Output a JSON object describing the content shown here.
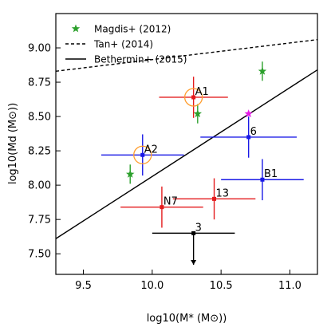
{
  "chart_data": {
    "type": "scatter",
    "xlabel": "log10(M* (M⊙))",
    "ylabel": "log10(Md (M⊙))",
    "xlim": [
      9.3,
      11.2
    ],
    "ylim": [
      7.35,
      9.25
    ],
    "xticks": [
      "9.5",
      "10.0",
      "10.5",
      "11.0"
    ],
    "yticks": [
      "7.50",
      "7.75",
      "8.00",
      "8.25",
      "8.50",
      "8.75",
      "9.00"
    ],
    "grid": false,
    "legend_position": "top-left",
    "legend": [
      {
        "label": "Magdis+ (2012)",
        "style": "star",
        "color": "#2ca02c"
      },
      {
        "label": "Tan+ (2014)",
        "style": "dashed-line",
        "color": "#000000"
      },
      {
        "label": "Bethermin+ (2015)",
        "style": "solid-line",
        "color": "#000000"
      }
    ],
    "lines": [
      {
        "name": "Tan+ (2014)",
        "style": "dashed",
        "x": [
          9.3,
          11.2
        ],
        "y": [
          8.83,
          9.06
        ]
      },
      {
        "name": "Bethermin+ (2015)",
        "style": "solid",
        "x": [
          9.3,
          11.2
        ],
        "y": [
          7.61,
          8.84
        ]
      }
    ],
    "magdis_points": [
      {
        "x": 9.84,
        "y": 8.08,
        "yerr": 0.07
      },
      {
        "x": 10.33,
        "y": 8.52,
        "yerr": 0.07
      },
      {
        "x": 10.8,
        "y": 8.83,
        "yerr": 0.07
      }
    ],
    "points": [
      {
        "label": "A1",
        "x": 10.3,
        "y": 8.64,
        "xerr": 0.25,
        "yerr": 0.15,
        "color": "#e41a1c",
        "circled": true
      },
      {
        "label": "A2",
        "x": 9.93,
        "y": 8.22,
        "xerr": 0.3,
        "yerr": 0.15,
        "color": "#1a1ae6",
        "circled": true
      },
      {
        "label": "6",
        "x": 10.7,
        "y": 8.35,
        "xerr": 0.35,
        "yerr": 0.15,
        "color": "#1a1ae6",
        "circled": false
      },
      {
        "label": "B1",
        "x": 10.8,
        "y": 8.04,
        "xerr": 0.3,
        "yerr": 0.15,
        "color": "#1a1ae6",
        "circled": false
      },
      {
        "label": "13",
        "x": 10.45,
        "y": 7.9,
        "xerr": 0.3,
        "yerr": 0.15,
        "color": "#e41a1c",
        "circled": false
      },
      {
        "label": "N7",
        "x": 10.07,
        "y": 7.84,
        "xerr": 0.3,
        "yerr": 0.15,
        "color": "#e41a1c",
        "circled": false
      },
      {
        "label": "3",
        "x": 10.3,
        "y": 7.65,
        "xerr": 0.3,
        "yerr": null,
        "upper_limit": true,
        "color": "#000000",
        "circled": false
      },
      {
        "label": "",
        "x": 10.7,
        "y": 8.52,
        "xerr": null,
        "yerr": null,
        "color": "#e61ae6",
        "circled": false,
        "marker": "star"
      }
    ]
  }
}
